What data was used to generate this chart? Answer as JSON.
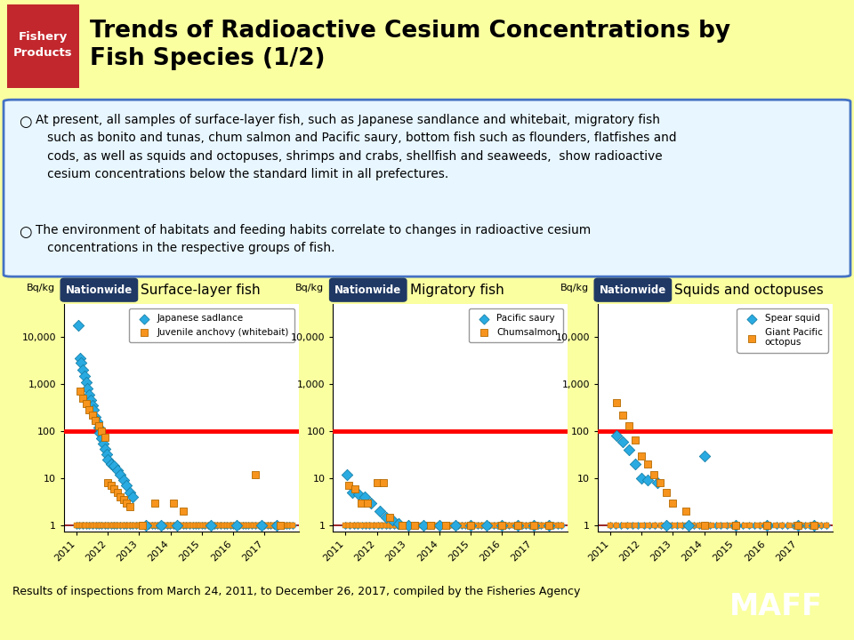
{
  "title": "Trends of Radioactive Cesium Concentrations by\nFish Species (1/2)",
  "title_tag": "Fishery\nProducts",
  "background_color": "#FAFFA0",
  "bullet_text_1": "At present, all samples of surface-layer fish, such as Japanese sandlance and whitebait, migratory fish\n   such as bonito and tunas, chum salmon and Pacific saury, bottom fish such as flounders, flatfishes and\n   cods, as well as squids and octopuses, shrimps and crabs, shellfish and seaweeds,  show radioactive\n   cesium concentrations below the standard limit in all prefectures.",
  "bullet_text_2": "The environment of habitats and feeding habits correlate to changes in radioactive cesium\n   concentrations in the respective groups of fish.",
  "subplots": [
    {
      "title": "Surface-layer fish",
      "series": [
        {
          "label": "Japanese sadlance",
          "color": "#29ABE2",
          "marker": "D",
          "x": [
            2011.05,
            2011.1,
            2011.15,
            2011.2,
            2011.25,
            2011.3,
            2011.35,
            2011.4,
            2011.45,
            2011.5,
            2011.55,
            2011.6,
            2011.65,
            2011.7,
            2011.75,
            2011.8,
            2011.85,
            2011.9,
            2011.95,
            2012.0,
            2012.1,
            2012.2,
            2012.3,
            2012.4,
            2012.5,
            2012.6,
            2012.7,
            2012.8,
            2013.2,
            2013.7,
            2014.2,
            2015.3,
            2016.1,
            2016.9,
            2017.4
          ],
          "y": [
            18000,
            3500,
            2800,
            2000,
            1500,
            1100,
            800,
            600,
            450,
            350,
            280,
            200,
            160,
            120,
            90,
            70,
            55,
            42,
            32,
            25,
            20,
            18,
            15,
            12,
            9,
            7,
            5,
            4,
            1,
            1,
            1,
            1,
            1,
            1,
            1
          ]
        },
        {
          "label": "Juvenile anchovy (whitebait)",
          "color": "#F7941D",
          "marker": "s",
          "x": [
            2011.1,
            2011.2,
            2011.3,
            2011.4,
            2011.5,
            2011.6,
            2011.7,
            2011.8,
            2011.9,
            2012.0,
            2012.1,
            2012.2,
            2012.3,
            2012.4,
            2012.5,
            2012.6,
            2012.7,
            2013.1,
            2013.5,
            2014.1,
            2014.4,
            2016.7,
            2017.5
          ],
          "y": [
            700,
            500,
            380,
            280,
            220,
            170,
            130,
            100,
            75,
            8,
            7,
            6,
            5,
            4,
            3.5,
            3,
            2.5,
            1,
            3,
            3,
            2,
            12,
            1
          ]
        }
      ],
      "bottom_dense_blue": {
        "x_start": 2011.0,
        "x_end": 2017.9,
        "count": 70
      },
      "bottom_dense_orange": {
        "x_start": 2011.0,
        "x_end": 2017.9,
        "count": 90
      }
    },
    {
      "title": "Migratory fish",
      "series": [
        {
          "label": "Pacific saury",
          "color": "#29ABE2",
          "marker": "D",
          "x": [
            2011.05,
            2011.2,
            2011.4,
            2011.6,
            2011.8,
            2012.1,
            2012.3,
            2012.5,
            2012.7,
            2013.0,
            2013.5,
            2014.0,
            2014.5,
            2015.0,
            2015.5,
            2016.0,
            2016.5,
            2017.0,
            2017.5
          ],
          "y": [
            12,
            5,
            4.5,
            4,
            3,
            2,
            1.5,
            1.3,
            1.1,
            1,
            1,
            1,
            1,
            1,
            1,
            1,
            1,
            1,
            1
          ]
        },
        {
          "label": "Chumsalmon",
          "color": "#F7941D",
          "marker": "s",
          "x": [
            2011.1,
            2011.3,
            2011.5,
            2011.7,
            2012.0,
            2012.2,
            2012.4,
            2012.8,
            2013.2,
            2013.7,
            2014.2,
            2015.0,
            2016.0,
            2016.5,
            2017.0,
            2017.5
          ],
          "y": [
            7,
            6,
            3,
            3,
            8,
            8,
            1.5,
            1,
            1,
            1,
            1,
            1,
            1,
            1,
            1,
            1
          ]
        }
      ],
      "bottom_dense_blue": {
        "x_start": 2011.0,
        "x_end": 2017.9,
        "count": 55
      },
      "bottom_dense_orange": {
        "x_start": 2011.0,
        "x_end": 2017.9,
        "count": 65
      }
    },
    {
      "title": "Squids and octopuses",
      "series": [
        {
          "label": "Spear squid",
          "color": "#29ABE2",
          "marker": "D",
          "x": [
            2011.2,
            2011.4,
            2011.6,
            2011.8,
            2012.0,
            2012.2,
            2012.5,
            2012.8,
            2013.5,
            2014.0,
            2015.0,
            2016.0,
            2017.0,
            2017.5
          ],
          "y": [
            80,
            60,
            40,
            20,
            10,
            9,
            8,
            1,
            1,
            30,
            1,
            1,
            1,
            1
          ]
        },
        {
          "label": "Giant Pacific\noctopus",
          "color": "#F7941D",
          "marker": "s",
          "x": [
            2011.2,
            2011.4,
            2011.6,
            2011.8,
            2012.0,
            2012.2,
            2012.4,
            2012.6,
            2012.8,
            2013.0,
            2013.4,
            2014.0,
            2015.0,
            2016.0,
            2017.0,
            2017.5
          ],
          "y": [
            400,
            220,
            130,
            65,
            30,
            20,
            12,
            8,
            5,
            3,
            2,
            1,
            1,
            1,
            1,
            1
          ]
        }
      ],
      "bottom_dense_blue": {
        "x_start": 2011.0,
        "x_end": 2017.9,
        "count": 40
      },
      "bottom_dense_orange": {
        "x_start": 2011.0,
        "x_end": 2017.9,
        "count": 35
      }
    }
  ],
  "standard_limit": 100,
  "ylim": [
    0.75,
    50000
  ],
  "xlim": [
    2010.6,
    2018.1
  ],
  "xticks": [
    2011,
    2012,
    2013,
    2014,
    2015,
    2016,
    2017
  ],
  "yticks": [
    1,
    10,
    100,
    1000,
    10000
  ],
  "ytick_labels": [
    "1",
    "10",
    "100",
    "1,000",
    "10,000"
  ],
  "ylabel": "Bq/kg",
  "footer": "Results of inspections from March 24, 2011, to December 26, 2017, compiled by the Fisheries Agency",
  "maff_label": "MAFF",
  "nationwide_box_color": "#1F3864",
  "tag_color": "#C1272D"
}
